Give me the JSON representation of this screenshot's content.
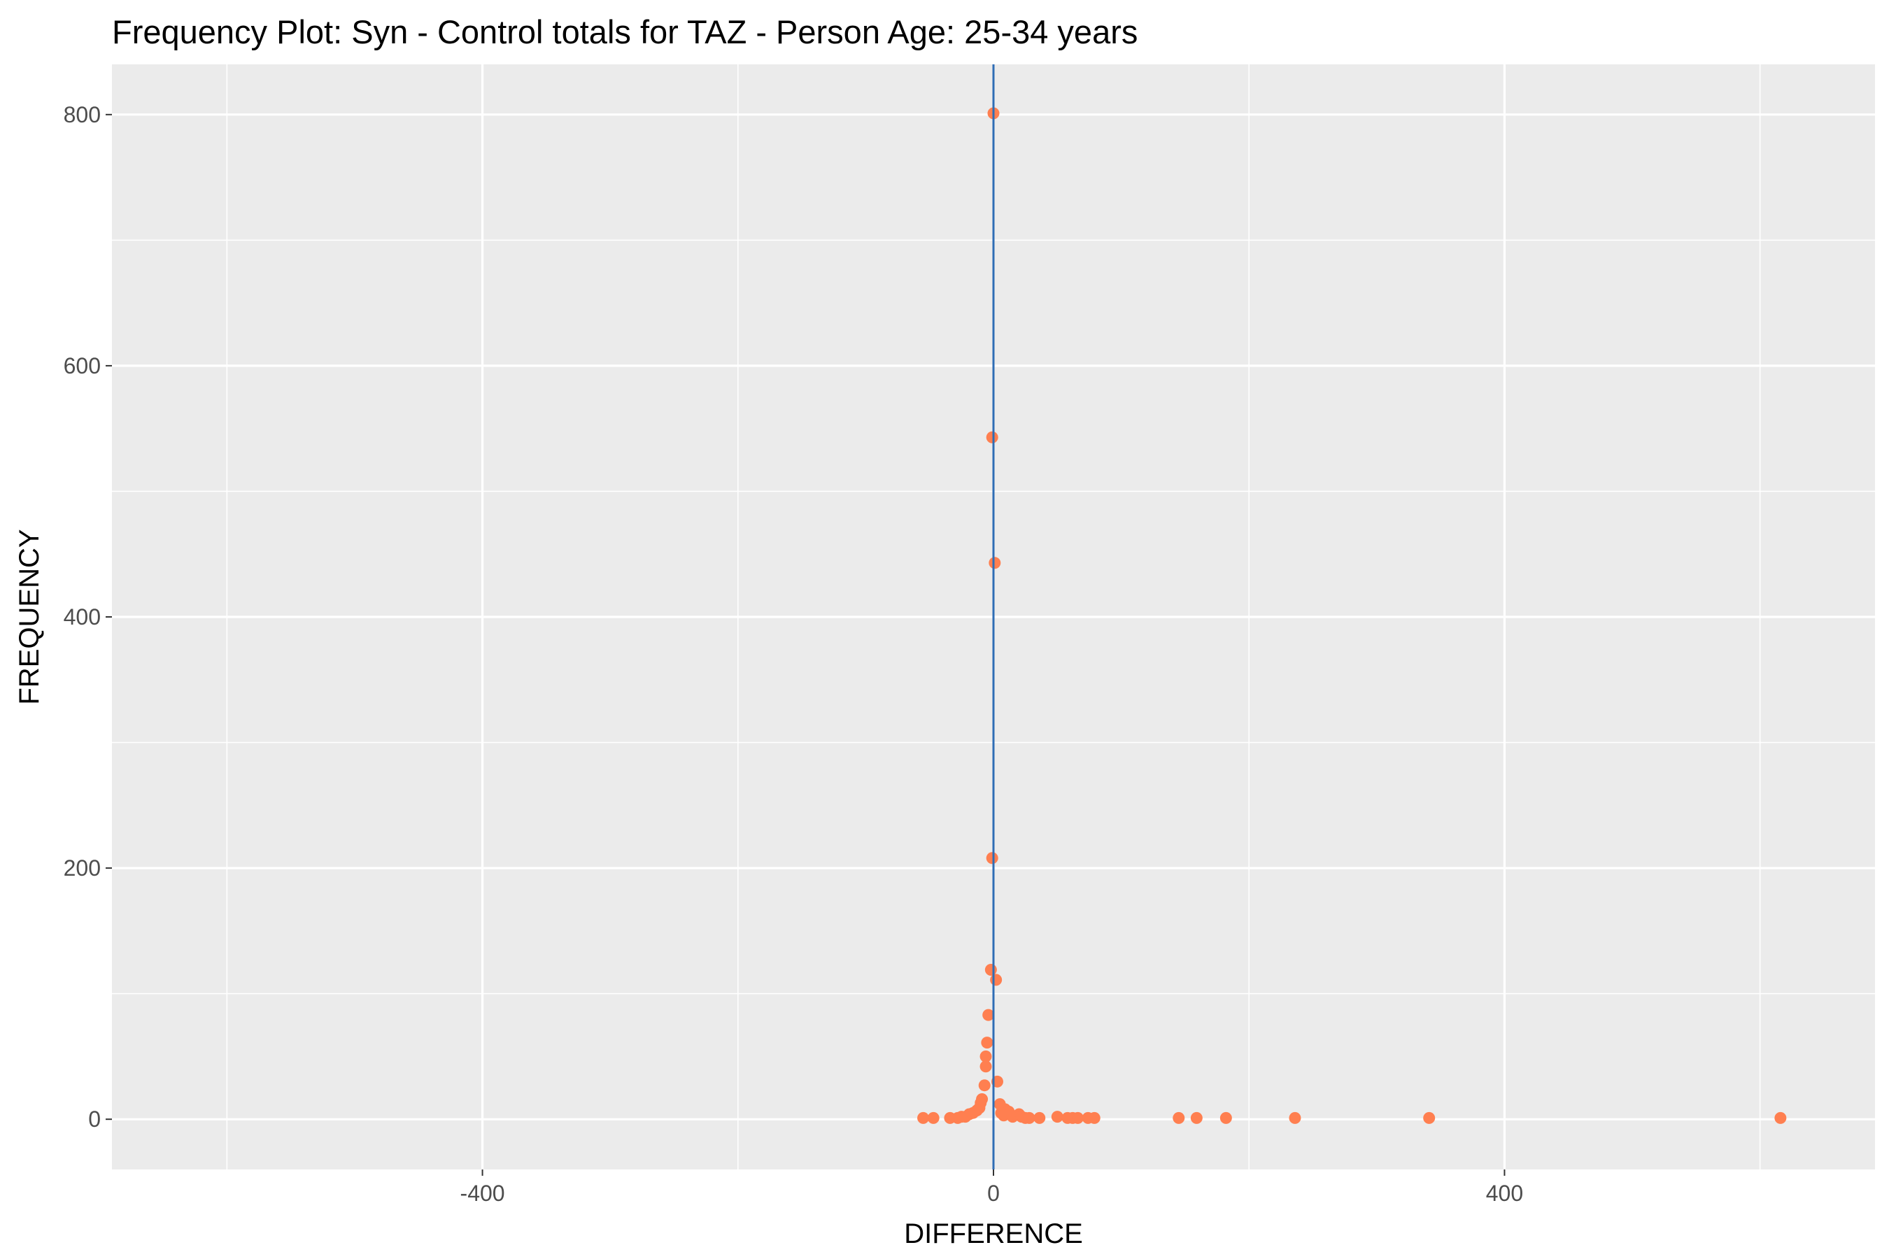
{
  "chart_data": {
    "type": "scatter",
    "title": "Frequency Plot: Syn - Control totals for TAZ - Person Age: 25-34 years",
    "xlabel": "DIFFERENCE",
    "ylabel": "FREQUENCY",
    "xlim": [
      -690,
      690
    ],
    "ylim": [
      -40,
      840
    ],
    "x_ticks": [
      -400,
      0,
      400
    ],
    "x_tick_labels": [
      "-400",
      "0",
      "400"
    ],
    "y_ticks": [
      0,
      200,
      400,
      600,
      800
    ],
    "y_tick_labels": [
      "0",
      "200",
      "400",
      "600",
      "800"
    ],
    "x_minor": [
      -600,
      -200,
      200,
      600
    ],
    "y_minor": [
      100,
      300,
      500,
      700
    ],
    "grid": true,
    "reference_line_x": 0,
    "colors": {
      "panel": "#EBEBEB",
      "grid": "#FFFFFF",
      "point": "#FF7F50",
      "vline": "#2F6DB5"
    },
    "points": [
      {
        "x": 0,
        "y": 801
      },
      {
        "x": -1,
        "y": 543
      },
      {
        "x": 1,
        "y": 443
      },
      {
        "x": -1,
        "y": 208
      },
      {
        "x": -2,
        "y": 119
      },
      {
        "x": 2,
        "y": 111
      },
      {
        "x": -4,
        "y": 83
      },
      {
        "x": -5,
        "y": 61
      },
      {
        "x": -6,
        "y": 50
      },
      {
        "x": -6,
        "y": 42
      },
      {
        "x": 3,
        "y": 30
      },
      {
        "x": -7,
        "y": 27
      },
      {
        "x": -9,
        "y": 16
      },
      {
        "x": -10,
        "y": 13
      },
      {
        "x": 5,
        "y": 12
      },
      {
        "x": -11,
        "y": 9
      },
      {
        "x": 9,
        "y": 8
      },
      {
        "x": -13,
        "y": 7
      },
      {
        "x": 12,
        "y": 6
      },
      {
        "x": -16,
        "y": 5
      },
      {
        "x": 6,
        "y": 5
      },
      {
        "x": -19,
        "y": 4
      },
      {
        "x": 20,
        "y": 4
      },
      {
        "x": 8,
        "y": 3
      },
      {
        "x": -22,
        "y": 2
      },
      {
        "x": 15,
        "y": 2
      },
      {
        "x": -25,
        "y": 2
      },
      {
        "x": 22,
        "y": 2
      },
      {
        "x": -28,
        "y": 1
      },
      {
        "x": 25,
        "y": 1
      },
      {
        "x": -34,
        "y": 1
      },
      {
        "x": 28,
        "y": 1
      },
      {
        "x": 36,
        "y": 1
      },
      {
        "x": -47,
        "y": 1
      },
      {
        "x": -55,
        "y": 1
      },
      {
        "x": 50,
        "y": 2
      },
      {
        "x": 58,
        "y": 1
      },
      {
        "x": 62,
        "y": 1
      },
      {
        "x": 66,
        "y": 1
      },
      {
        "x": 74,
        "y": 1
      },
      {
        "x": 79,
        "y": 1
      },
      {
        "x": 145,
        "y": 1
      },
      {
        "x": 159,
        "y": 1
      },
      {
        "x": 182,
        "y": 1
      },
      {
        "x": 236,
        "y": 1
      },
      {
        "x": 341,
        "y": 1
      },
      {
        "x": 616,
        "y": 1
      }
    ]
  }
}
